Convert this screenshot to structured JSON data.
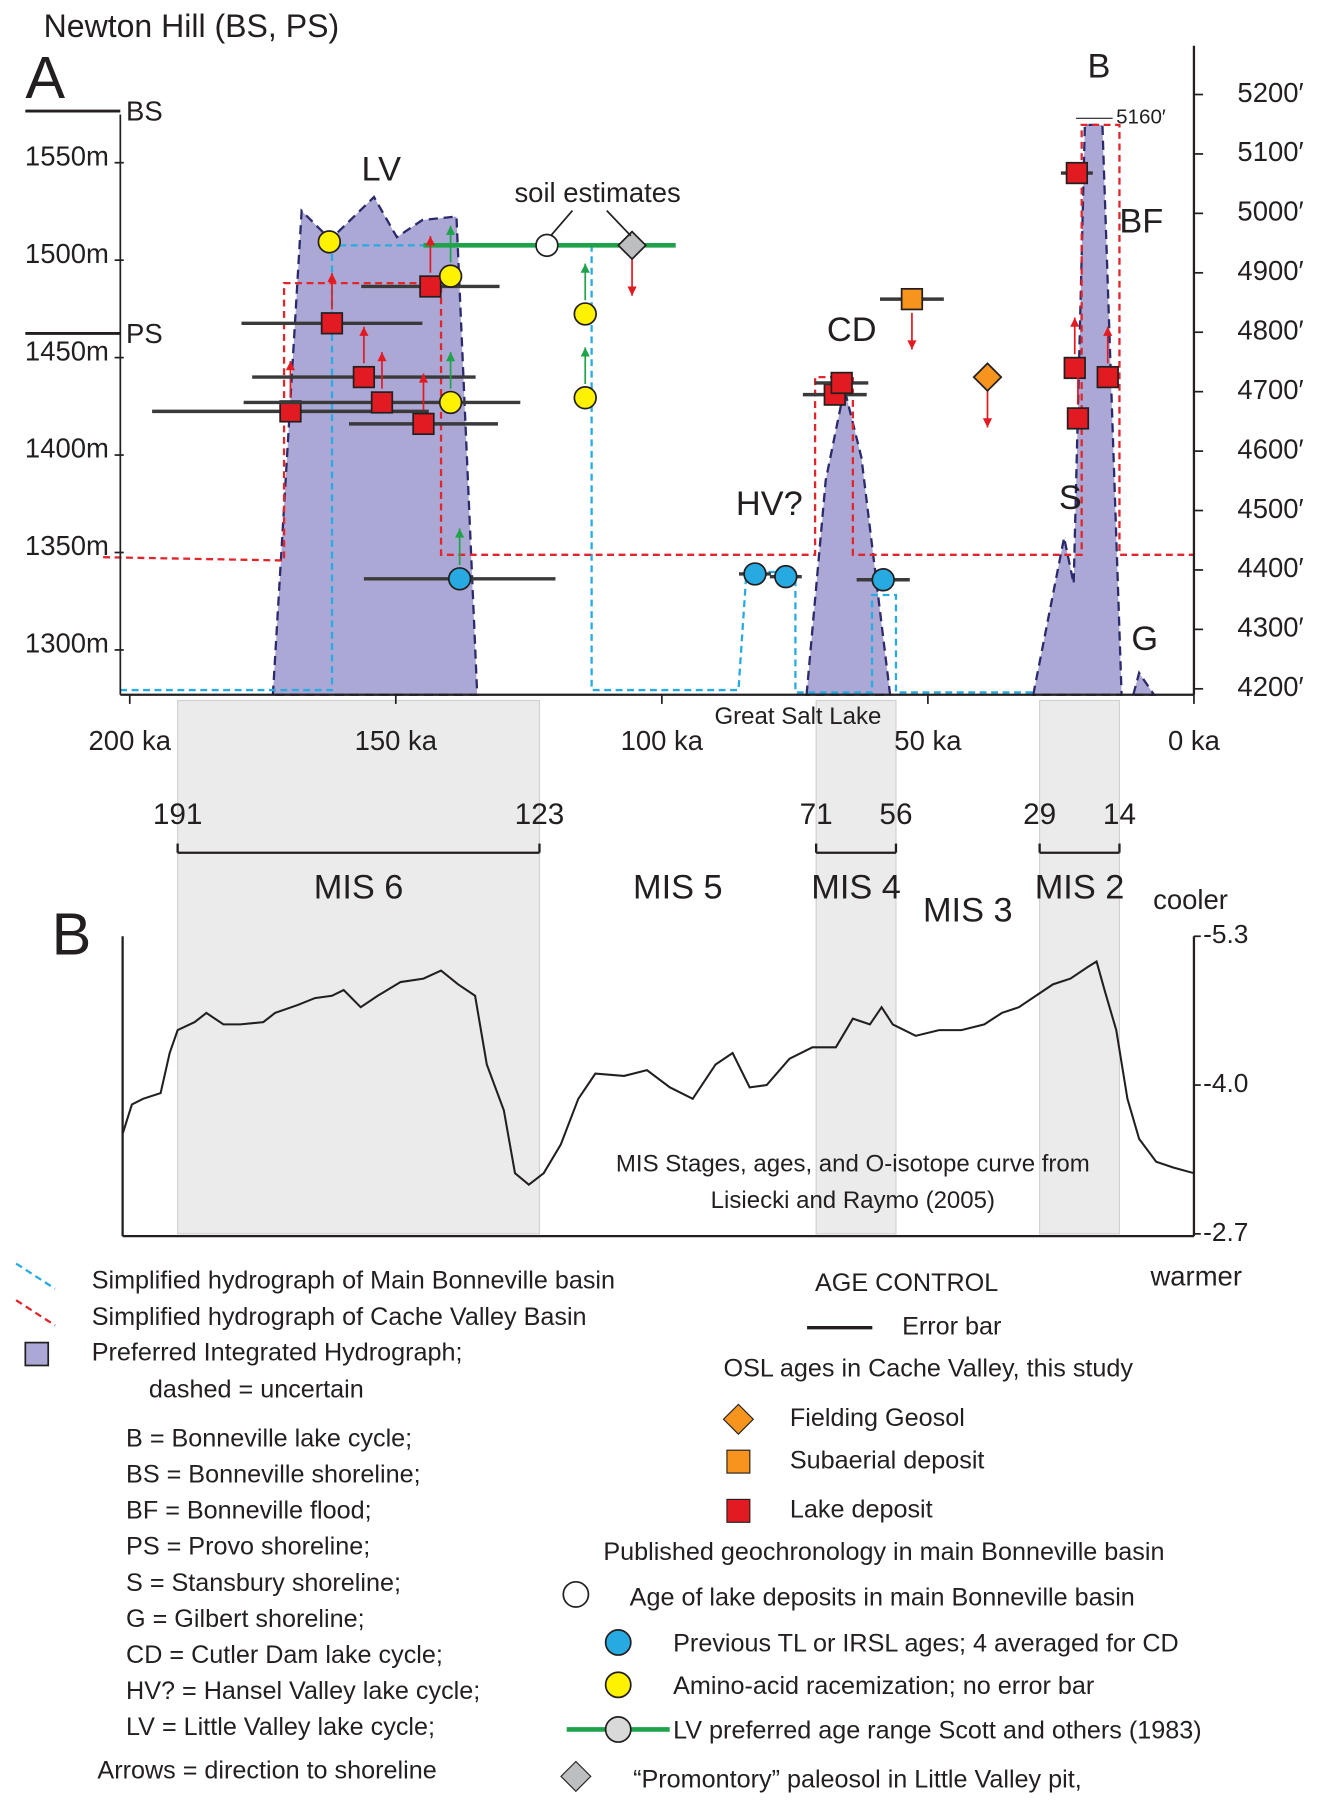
{
  "title": "Newton Hill (BS, PS)",
  "chart_data": [
    {
      "type": "scatter",
      "panel": "A",
      "xlim": [
        205,
        0
      ],
      "xticks": [
        {
          "value": 200,
          "label": "200 ka"
        },
        {
          "value": 150,
          "label": "150 ka"
        },
        {
          "value": 100,
          "label": "100 ka"
        },
        {
          "value": 50,
          "label": "50 ka"
        },
        {
          "value": 0,
          "label": "0 ka"
        }
      ],
      "ylim": [
        1277,
        1610
      ],
      "yticks": [
        {
          "value": 1550,
          "label": "1550m"
        },
        {
          "value": 1500,
          "label": "1500m"
        },
        {
          "value": 1450,
          "label": "1450m"
        },
        {
          "value": 1400,
          "label": "1400m"
        },
        {
          "value": 1350,
          "label": "1350m"
        },
        {
          "value": 1300,
          "label": "1300m"
        }
      ],
      "y2lim": [
        4190,
        5282
      ],
      "y2ticks": [
        {
          "value": 5200,
          "label": "5200′"
        },
        {
          "value": 5100,
          "label": "5100′"
        },
        {
          "value": 5000,
          "label": "5000′"
        },
        {
          "value": 4900,
          "label": "4900′"
        },
        {
          "value": 4800,
          "label": "4800′"
        },
        {
          "value": 4700,
          "label": "4700′"
        },
        {
          "value": 4600,
          "label": "4600′"
        },
        {
          "value": 4500,
          "label": "4500′"
        },
        {
          "value": 4400,
          "label": "4400′"
        },
        {
          "value": 4300,
          "label": "4300′"
        },
        {
          "value": 4200,
          "label": "4200′"
        }
      ],
      "shorelines": [
        {
          "label": "BS",
          "value": 1576.5
        },
        {
          "label": "PS",
          "value": 1462.4
        }
      ],
      "peak_annotation": {
        "value": 5160,
        "label": "5160′"
      },
      "annotations": {
        "panel": "A",
        "lv": "LV",
        "cd": "CD",
        "hv": "HV?",
        "b": "B",
        "bf": "BF",
        "s": "S",
        "g": "G",
        "soil": "soil estimates",
        "gsl": "Great Salt Lake"
      },
      "area_color": "#aca8d6",
      "areas": [
        {
          "x": [
            173.1,
            167.7,
            162.3,
            154.1,
            149.8,
            145,
            138.6,
            134.7
          ],
          "y": [
            1277,
            1525.3,
            1510.6,
            1532.4,
            1511.8,
            1520.6,
            1522.4,
            1277
          ]
        },
        {
          "x": [
            72.8,
            69.2,
            65.7,
            62.5,
            57.1
          ],
          "y": [
            1277,
            1387.1,
            1434.1,
            1398.8,
            1277
          ]
        },
        {
          "x": [
            30.2,
            24.4,
            22.6,
            20.5,
            17.2,
            13.6
          ],
          "y": [
            1277,
            1357.6,
            1334,
            1569.4,
            1569.4,
            1277
          ]
        },
        {
          "x": [
            11.4,
            10.3,
            7.5
          ],
          "y": [
            1277,
            1288.2,
            1277
          ]
        }
      ],
      "hydrographs": [
        {
          "name": "Simplified hydrograph of Main Bonneville basin",
          "color": "#29abe2",
          "x": [
            201.8,
            162,
            162,
            113.2,
            113.2,
            85.6,
            84.1,
            74.9,
            74.9,
            60.5,
            60.5,
            56,
            56,
            29.8
          ],
          "y": [
            1279.4,
            1279.4,
            1507.6,
            1507.6,
            1279.4,
            1279.4,
            1340,
            1340,
            1278.2,
            1278.2,
            1328.2,
            1328.2,
            1278.2,
            1278.2
          ]
        },
        {
          "name": "Simplified hydrograph of Cache Valley Basin",
          "color": "#e0262c",
          "x": [
            205,
            171,
            171,
            141.5,
            141.5,
            71.2,
            71.2,
            64.1,
            64.1,
            21.1,
            21.1,
            14,
            14,
            0
          ],
          "y": [
            1347.6,
            1345.9,
            1488.2,
            1488.2,
            1348.8,
            1348.8,
            1440,
            1440,
            1348.8,
            1348.8,
            1569.4,
            1569.4,
            1348.8,
            1348.8
          ]
        }
      ],
      "series": [
        {
          "name": "LV preferred age range Scott and others (1983)",
          "marker": "line",
          "color": "#1ea34a",
          "x": [
            144.8,
            97.4
          ],
          "y": [
            1507.6,
            1507.6
          ]
        },
        {
          "name": "Lake deposit",
          "marker": "square",
          "color": "#e21b23",
          "arrow_color": "#e21b23",
          "x": [
            169.8,
            162,
            156,
            152.6,
            144.8,
            143.5,
            67.5,
            66.2,
            22,
            22.4,
            21.8,
            16.2
          ],
          "y": [
            1422.4,
            1467.6,
            1440,
            1427,
            1416,
            1486.5,
            1431,
            1437,
            1544.7,
            1444.7,
            1418.8,
            1440
          ],
          "xerr": [
            26,
            17,
            21,
            26,
            14,
            13,
            6,
            5,
            3,
            2,
            2,
            2
          ],
          "arrows": [
            "up",
            "up",
            "up",
            "up",
            "up",
            "up",
            null,
            null,
            null,
            "up",
            "up",
            "up"
          ]
        },
        {
          "name": "Amino-acid racemization; no error bar",
          "marker": "circle",
          "color": "#fff200",
          "arrow_color": "#1ea34a",
          "x": [
            162.5,
            139.7,
            114.4,
            114.4,
            139.7
          ],
          "y": [
            1509.4,
            1491.8,
            1472.4,
            1429.4,
            1427
          ],
          "arrows": [
            null,
            "up",
            "up",
            "up",
            "up"
          ]
        },
        {
          "name": "Previous TL or IRSL ages; 4 averaged for CD",
          "marker": "circle",
          "color": "#27aae1",
          "arrow_color": "#1ea34a",
          "x": [
            138,
            82.5,
            76.7,
            58.4
          ],
          "y": [
            1336.5,
            1339,
            1337.6,
            1336
          ],
          "xerr": [
            18,
            3,
            3,
            5
          ],
          "arrows": [
            "up",
            null,
            null,
            null
          ]
        },
        {
          "name": "Subaerial deposit",
          "marker": "square",
          "color": "#f7941d",
          "arrow_color": "#e21b23",
          "x": [
            53
          ],
          "y": [
            1480
          ],
          "xerr": [
            6
          ],
          "arrows": [
            "down"
          ]
        },
        {
          "name": "Fielding Geosol",
          "marker": "diamond",
          "color": "#f7941d",
          "arrow_color": "#e21b23",
          "x": [
            38.8
          ],
          "y": [
            1440
          ],
          "arrows": [
            "down"
          ]
        },
        {
          "name": "Age of lake deposits in main Bonneville basin",
          "marker": "circle",
          "color": "#ffffff",
          "x": [
            121.6
          ],
          "y": [
            1507.6
          ]
        },
        {
          "name": "“Promontory” paleosol in Little Valley pit,",
          "marker": "diamond",
          "color": "#bcbec0",
          "arrow_color": "#e21b23",
          "x": [
            105.6
          ],
          "y": [
            1507.6
          ],
          "arrows": [
            "down"
          ]
        }
      ]
    },
    {
      "type": "line",
      "panel": "B",
      "label": "B",
      "xlim": [
        205,
        0
      ],
      "ylim": [
        -2.7,
        -5.3
      ],
      "yticks": [
        -5.3,
        {
          "value": -4,
          "label": "-4.0"
        },
        -2.7
      ],
      "color": "#231f20",
      "band_color": "#ebebeb",
      "x": [
        201.3,
        199.6,
        197.5,
        194.2,
        192.5,
        191,
        187.8,
        185.6,
        182.4,
        179.2,
        174.9,
        172.7,
        168.4,
        165.2,
        162,
        159.8,
        156.6,
        153.4,
        149.1,
        144.8,
        141.5,
        138.3,
        135.1,
        132.9,
        129.7,
        127.6,
        125,
        122.2,
        119,
        115.7,
        112.5,
        107.1,
        102.8,
        98.5,
        94.2,
        89.9,
        86.7,
        83.5,
        80.3,
        76,
        71.7,
        67.3,
        64.1,
        60.9,
        58.7,
        56.6,
        52.3,
        47.9,
        43.7,
        39.4,
        36.1,
        32.9,
        29.7,
        26.5,
        23.2,
        20,
        18.3,
        16.8,
        14.6,
        12.5,
        10.3,
        7.1,
        3.9,
        0
      ],
      "values": [
        -3.58,
        -3.83,
        -3.88,
        -3.93,
        -4.28,
        -4.48,
        -4.55,
        -4.63,
        -4.53,
        -4.53,
        -4.55,
        -4.63,
        -4.7,
        -4.76,
        -4.78,
        -4.83,
        -4.68,
        -4.78,
        -4.9,
        -4.93,
        -5,
        -4.88,
        -4.78,
        -4.18,
        -3.78,
        -3.23,
        -3.13,
        -3.23,
        -3.48,
        -3.88,
        -4.1,
        -4.08,
        -4.13,
        -3.98,
        -3.88,
        -4.18,
        -4.28,
        -3.98,
        -4,
        -4.23,
        -4.33,
        -4.33,
        -4.58,
        -4.53,
        -4.68,
        -4.53,
        -4.43,
        -4.48,
        -4.48,
        -4.53,
        -4.63,
        -4.68,
        -4.78,
        -4.88,
        -4.93,
        -5.03,
        -5.08,
        -4.83,
        -4.48,
        -3.88,
        -3.53,
        -3.33,
        -3.28,
        -3.23
      ],
      "stages": [
        {
          "name": "MIS 6",
          "start": 191,
          "end": 123
        },
        {
          "name": "MIS 5"
        },
        {
          "name": "MIS 4",
          "start": 71,
          "end": 56
        },
        {
          "name": "MIS 3"
        },
        {
          "name": "MIS 2",
          "start": 29,
          "end": 14
        }
      ],
      "cooler": "cooler",
      "warmer": "warmer",
      "note": [
        "MIS Stages, ages, and O-isotope curve from",
        "Lisiecki and Raymo (2005)"
      ]
    }
  ],
  "legend": {
    "hydrograph_area": [
      "Preferred Integrated Hydrograph;",
      "dashed = uncertain"
    ],
    "abbreviations": [
      "B = Bonneville lake cycle;",
      "BS = Bonneville shoreline;",
      "BF = Bonneville flood;",
      "PS = Provo shoreline;",
      "S = Stansbury shoreline;",
      "G = Gilbert shoreline;",
      "CD = Cutler Dam lake cycle;",
      "HV? = Hansel Valley lake cycle;",
      "LV = Little Valley lake cycle;"
    ],
    "arrows_note": "Arrows = direction to shoreline",
    "age_control": "AGE CONTROL",
    "error_bar": "Error bar",
    "osl_header": "OSL ages in Cache Valley, this study",
    "published_header": "Published geochronology in main Bonneville basin"
  }
}
